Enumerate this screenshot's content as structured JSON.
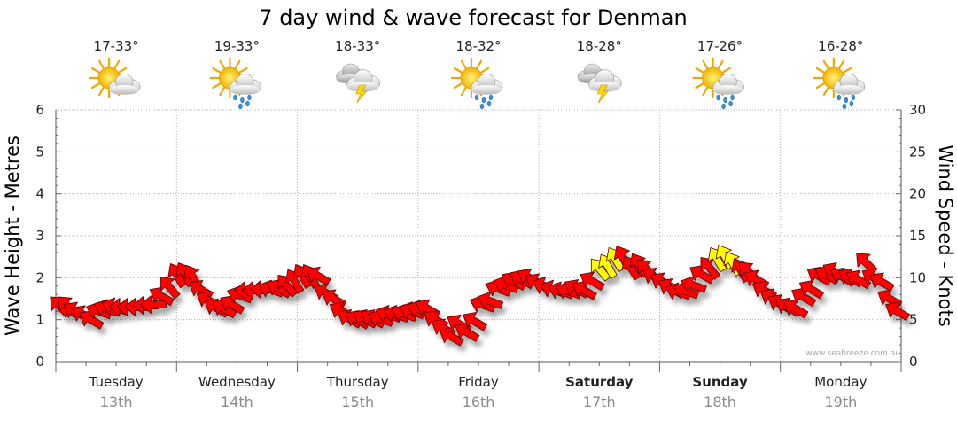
{
  "chart_data": {
    "type": "line",
    "title": "7 day wind & wave forecast for Denman",
    "ylabel_left": "Wave Height - Metres",
    "ylabel_right": "Wind Speed - Knots",
    "ylim_left": [
      0,
      6
    ],
    "ylim_right": [
      0,
      30
    ],
    "yticks_left": [
      "0",
      "1",
      "2",
      "3",
      "4",
      "5",
      "6"
    ],
    "yticks_right": [
      "0",
      "5",
      "10",
      "15",
      "20",
      "25",
      "30"
    ],
    "grid": true,
    "credit": "www.seabreeze.com.au",
    "days": [
      {
        "name": "Tuesday",
        "date": "13th",
        "temp": "17-33°",
        "weather": "partly-cloudy-icon",
        "bold": false
      },
      {
        "name": "Wednesday",
        "date": "14th",
        "temp": "19-33°",
        "weather": "sun-showers-icon",
        "bold": false
      },
      {
        "name": "Thursday",
        "date": "15th",
        "temp": "18-33°",
        "weather": "thunderstorm-icon",
        "bold": false
      },
      {
        "name": "Friday",
        "date": "16th",
        "temp": "18-32°",
        "weather": "sun-showers-icon",
        "bold": false
      },
      {
        "name": "Saturday",
        "date": "17th",
        "temp": "18-28°",
        "weather": "thunderstorm-icon",
        "bold": true
      },
      {
        "name": "Sunday",
        "date": "18th",
        "temp": "17-26°",
        "weather": "sun-showers-icon",
        "bold": true
      },
      {
        "name": "Monday",
        "date": "19th",
        "temp": "16-28°",
        "weather": "sun-showers-icon",
        "bold": false
      }
    ],
    "wind_arrows": {
      "x_unit": "days from start of Tuesday",
      "speed_knots": [
        6.6,
        6.6,
        6.0,
        5.6,
        5.0,
        6.0,
        6.3,
        6.5,
        6.5,
        6.5,
        6.5,
        6.7,
        6.8,
        7.8,
        8.9,
        10.3,
        10.4,
        10.1,
        8.6,
        7.3,
        6.4,
        6.3,
        6.8,
        7.9,
        8.5,
        8.5,
        8.6,
        8.6,
        8.7,
        9.1,
        9.6,
        10.2,
        10.2,
        10.2,
        8.2,
        7.5,
        6.0,
        5.1,
        5.0,
        5.1,
        5.1,
        5.1,
        5.6,
        5.6,
        5.7,
        6.0,
        6.2,
        6.3,
        5.0,
        4.0,
        3.0,
        4.5,
        3.5,
        4.8,
        6.8,
        7.2,
        8.7,
        9.1,
        9.6,
        9.8,
        10.0,
        9.4,
        9.0,
        8.6,
        8.4,
        8.4,
        8.7,
        8.5,
        9.6,
        11.0,
        11.4,
        12.2,
        12.4,
        11.2,
        11.5,
        11.0,
        10.1,
        9.5,
        8.8,
        8.3,
        8.4,
        9.1,
        10.4,
        11.2,
        12.2,
        12.5,
        11.7,
        10.9,
        10.7,
        9.8,
        8.5,
        7.6,
        6.9,
        6.5,
        6.3,
        7.7,
        8.6,
        10.2,
        10.3,
        10.7,
        10.1,
        10.0,
        9.8,
        11.8,
        10.0,
        9.5,
        7.5,
        6.0
      ],
      "direction_deg": [
        315,
        315,
        300,
        300,
        300,
        290,
        290,
        290,
        270,
        270,
        270,
        270,
        270,
        300,
        320,
        330,
        330,
        330,
        300,
        300,
        300,
        300,
        300,
        290,
        270,
        270,
        270,
        290,
        300,
        320,
        330,
        330,
        330,
        300,
        300,
        300,
        300,
        300,
        300,
        300,
        300,
        290,
        290,
        290,
        290,
        290,
        290,
        300,
        300,
        300,
        300,
        300,
        300,
        300,
        290,
        290,
        290,
        290,
        300,
        300,
        300,
        300,
        290,
        290,
        290,
        290,
        300,
        300,
        300,
        320,
        330,
        330,
        330,
        330,
        330,
        315,
        300,
        300,
        300,
        290,
        290,
        290,
        300,
        320,
        330,
        330,
        330,
        330,
        315,
        300,
        300,
        300,
        300,
        300,
        300,
        300,
        300,
        300,
        300,
        300,
        300,
        300,
        300,
        315,
        300,
        300,
        300,
        300
      ],
      "highlight": [
        false,
        false,
        false,
        false,
        false,
        false,
        false,
        false,
        false,
        false,
        false,
        false,
        false,
        false,
        false,
        false,
        false,
        false,
        false,
        false,
        false,
        false,
        false,
        false,
        false,
        false,
        false,
        false,
        false,
        false,
        false,
        false,
        false,
        false,
        false,
        false,
        false,
        false,
        false,
        false,
        false,
        false,
        false,
        false,
        false,
        false,
        false,
        false,
        false,
        false,
        false,
        false,
        false,
        false,
        false,
        false,
        false,
        false,
        false,
        false,
        false,
        false,
        false,
        false,
        false,
        false,
        false,
        false,
        false,
        true,
        true,
        true,
        false,
        false,
        false,
        false,
        false,
        false,
        false,
        false,
        false,
        false,
        false,
        false,
        true,
        true,
        true,
        false,
        false,
        false,
        false,
        false,
        false,
        false,
        false,
        false,
        false,
        false,
        false,
        false,
        false,
        false,
        false,
        false,
        false,
        false,
        false,
        false
      ],
      "normal_color": "#ff0000",
      "highlight_color": "#ffff00"
    }
  }
}
